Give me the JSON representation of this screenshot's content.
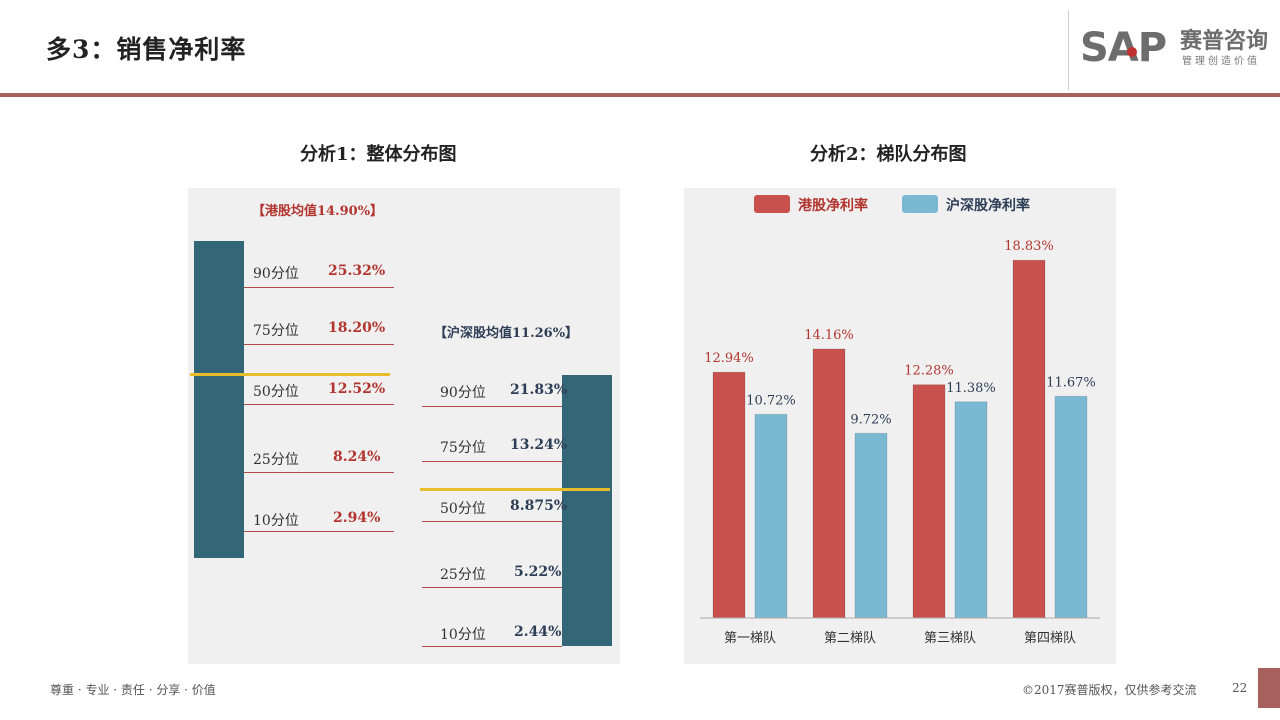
{
  "header": {
    "title": "多3：销售净利率",
    "logo": {
      "brand": "SAP",
      "name": "赛普咨询",
      "slogan": "管理创造价值"
    }
  },
  "analysis1": {
    "title": "分析1：整体分布图",
    "hk": {
      "avg_label": "【港股均值14.90%】",
      "quantiles": [
        {
          "label": "90分位",
          "value": "25.32%"
        },
        {
          "label": "75分位",
          "value": "18.20%"
        },
        {
          "label": "50分位",
          "value": "12.52%"
        },
        {
          "label": "25分位",
          "value": "8.24%"
        },
        {
          "label": "10分位",
          "value": "2.94%"
        }
      ]
    },
    "cn": {
      "avg_label": "【沪深股均值11.26%】",
      "quantiles": [
        {
          "label": "90分位",
          "value": "21.83%"
        },
        {
          "label": "75分位",
          "value": "13.24%"
        },
        {
          "label": "50分位",
          "value": "8.875%"
        },
        {
          "label": "25分位",
          "value": "5.22%"
        },
        {
          "label": "10分位",
          "value": "2.44%"
        }
      ]
    }
  },
  "analysis2": {
    "title": "分析2：梯队分布图"
  },
  "chart_data": {
    "type": "bar",
    "title": "分析2：梯队分布图",
    "categories": [
      "第一梯队",
      "第二梯队",
      "第三梯队",
      "第四梯队"
    ],
    "series": [
      {
        "name": "港股净利率",
        "values": [
          12.94,
          14.16,
          12.28,
          18.83
        ],
        "labels": [
          "12.94%",
          "14.16%",
          "12.28%",
          "18.83%"
        ],
        "color": "#c9514d"
      },
      {
        "name": "沪深股净利率",
        "values": [
          10.72,
          9.72,
          11.38,
          11.67
        ],
        "labels": [
          "10.72%",
          "9.72%",
          "11.38%",
          "11.67%"
        ],
        "color": "#7ab9d1"
      }
    ],
    "ylim": [
      0,
      20
    ],
    "legend": "top",
    "grid": false
  },
  "colors": {
    "accent": "#a8605d",
    "hk": "#b2352f",
    "cn": "#2d3e56",
    "column": "#336677",
    "median_line": "#e8be2a"
  },
  "footer": {
    "values": "尊重 · 专业 · 责任 · 分享 · 价值",
    "copyright": "©2017赛普版权，仅供参考交流",
    "page": "22"
  }
}
